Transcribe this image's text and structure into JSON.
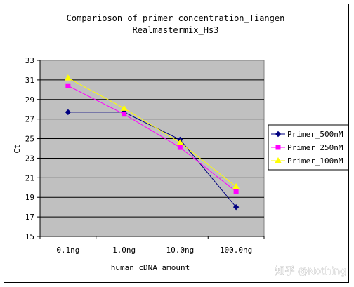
{
  "chart_data": {
    "type": "line",
    "title_line1": "Comparioson of primer concentration_Tiangen",
    "title_line2": "Realmastermix_Hs3",
    "xlabel": "human cDNA amount",
    "ylabel": "Ct",
    "categories": [
      "0.1ng",
      "1.0ng",
      "10.0ng",
      "100.0ng"
    ],
    "ylim": [
      15,
      33
    ],
    "yticks": [
      "15",
      "17",
      "19",
      "21",
      "23",
      "25",
      "27",
      "29",
      "31",
      "33"
    ],
    "grid": true,
    "legend_position": "right",
    "series": [
      {
        "name": "Primer_500nM",
        "values": [
          27.7,
          27.7,
          24.9,
          18.0
        ],
        "color": "#000080",
        "marker": "diamond"
      },
      {
        "name": "Primer_250nM",
        "values": [
          30.4,
          27.5,
          24.1,
          19.6
        ],
        "color": "#ff00ff",
        "marker": "square"
      },
      {
        "name": "Primer_100nM",
        "values": [
          31.2,
          28.1,
          24.6,
          20.1
        ],
        "color": "#ffff00",
        "marker": "triangle"
      }
    ],
    "plot_background": "#c0c0c0"
  },
  "watermark": "知乎 @Nothing"
}
